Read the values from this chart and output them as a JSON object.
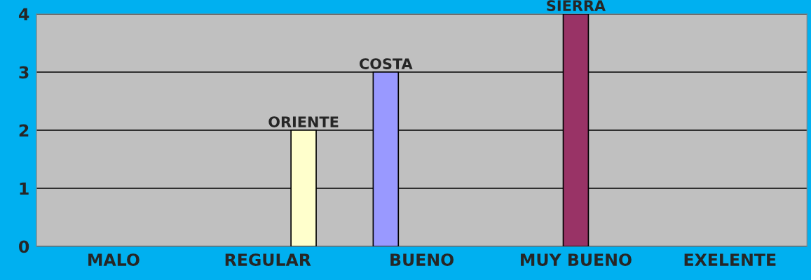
{
  "chart_data": {
    "type": "bar",
    "categories": [
      "MALO",
      "REGULAR",
      "BUENO",
      "MUY BUENO",
      "EXELENTE"
    ],
    "series": [
      {
        "name": "COSTA",
        "color": "#9999ff",
        "values": [
          null,
          null,
          3,
          null,
          null
        ]
      },
      {
        "name": "SIERRA",
        "color": "#993366",
        "values": [
          null,
          null,
          null,
          4,
          null
        ]
      },
      {
        "name": "ORIENTE",
        "color": "#ffffcc",
        "values": [
          null,
          2,
          null,
          null,
          null
        ]
      }
    ],
    "ylim": [
      0,
      4
    ],
    "yticks": [
      0,
      1,
      2,
      3,
      4
    ],
    "grid": "y",
    "legend": false
  }
}
